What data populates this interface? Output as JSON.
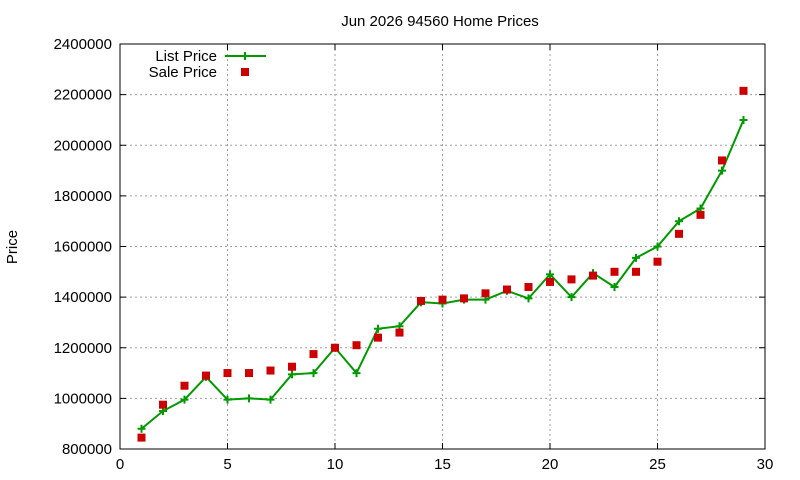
{
  "chart_data": {
    "type": "line",
    "title": "Jun 2026 94560 Home Prices",
    "xlabel": "",
    "ylabel": "Price",
    "xlim": [
      0,
      30
    ],
    "ylim": [
      800000,
      2400000
    ],
    "xticks": [
      "0",
      "5",
      "10",
      "15",
      "20",
      "25",
      "30"
    ],
    "yticks": [
      "800000",
      "1000000",
      "1200000",
      "1400000",
      "1600000",
      "1800000",
      "2000000",
      "2200000",
      "2400000"
    ],
    "grid": true,
    "legend_position": "top-left",
    "series": [
      {
        "name": "List Price",
        "style": "line+cross",
        "color": "#009900",
        "x": [
          1,
          2,
          3,
          4,
          5,
          6,
          7,
          8,
          9,
          10,
          11,
          12,
          13,
          14,
          15,
          16,
          17,
          18,
          19,
          20,
          21,
          22,
          23,
          24,
          25,
          26,
          27,
          28,
          29
        ],
        "y": [
          880000,
          950000,
          995000,
          1085000,
          995000,
          1000000,
          995000,
          1095000,
          1100000,
          1200000,
          1100000,
          1275000,
          1285000,
          1380000,
          1375000,
          1390000,
          1390000,
          1425000,
          1395000,
          1490000,
          1400000,
          1495000,
          1440000,
          1555000,
          1600000,
          1700000,
          1750000,
          1900000,
          2100000
        ]
      },
      {
        "name": "Sale Price",
        "style": "square",
        "color": "#cc0000",
        "x": [
          1,
          2,
          3,
          4,
          5,
          6,
          7,
          8,
          9,
          10,
          11,
          12,
          13,
          14,
          15,
          16,
          17,
          18,
          19,
          20,
          21,
          22,
          23,
          24,
          25,
          26,
          27,
          28,
          29
        ],
        "y": [
          845000,
          975000,
          1050000,
          1090000,
          1100000,
          1100000,
          1110000,
          1125000,
          1175000,
          1200000,
          1210000,
          1240000,
          1260000,
          1385000,
          1390000,
          1395000,
          1415000,
          1430000,
          1440000,
          1460000,
          1470000,
          1485000,
          1500000,
          1500000,
          1540000,
          1650000,
          1725000,
          1940000,
          2215000
        ]
      }
    ]
  }
}
